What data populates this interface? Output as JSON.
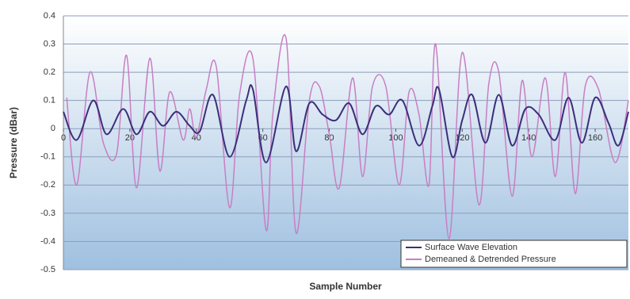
{
  "chart_data": {
    "type": "line",
    "y_label": "Pressure (dBar)",
    "x_label": "Sample Number",
    "xlim": [
      0,
      170
    ],
    "xticks": [
      0,
      20,
      40,
      60,
      80,
      100,
      120,
      140,
      160
    ],
    "ylim": [
      -0.5,
      0.4
    ],
    "yticks": [
      0.4,
      0.3,
      0.2,
      0.1,
      0,
      -0.1,
      -0.2,
      -0.3,
      -0.4,
      -0.5
    ],
    "grid": true,
    "legend": "bottom-right",
    "series": [
      {
        "name": "Surface Wave Elevation",
        "color": "#3b2f7a",
        "x": [
          0,
          4,
          9,
          13,
          18,
          22,
          26,
          30,
          34,
          38,
          41,
          45,
          50,
          55,
          57,
          61,
          67,
          70,
          74,
          78,
          82,
          86,
          90,
          94,
          98,
          102,
          107,
          111,
          113,
          117,
          120,
          123,
          127,
          131,
          135,
          139,
          143,
          148,
          152,
          156,
          160,
          164,
          167,
          170
        ],
        "values": [
          0.06,
          -0.04,
          0.1,
          -0.02,
          0.07,
          -0.02,
          0.06,
          0.01,
          0.06,
          0.01,
          -0.01,
          0.12,
          -0.1,
          0.1,
          0.14,
          -0.12,
          0.15,
          -0.08,
          0.09,
          0.05,
          0.03,
          0.09,
          -0.02,
          0.08,
          0.05,
          0.1,
          -0.06,
          0.08,
          0.14,
          -0.1,
          0.03,
          0.12,
          -0.05,
          0.12,
          -0.06,
          0.07,
          0.05,
          -0.04,
          0.11,
          -0.05,
          0.11,
          0.02,
          -0.06,
          0.06
        ]
      },
      {
        "name": "Demeaned & Detrended Pressure",
        "color": "#c77fc4",
        "x": [
          1,
          4,
          8,
          12,
          16,
          19,
          22,
          26,
          29,
          32,
          36,
          38,
          40,
          43,
          46,
          50,
          53,
          57,
          61,
          63,
          67,
          70,
          74,
          77,
          80,
          83,
          87,
          90,
          93,
          97,
          101,
          104,
          107,
          110,
          112,
          116,
          120,
          125,
          128,
          131,
          135,
          138,
          141,
          145,
          148,
          151,
          154,
          157,
          161,
          166,
          170
        ],
        "values": [
          0.11,
          -0.2,
          0.2,
          -0.05,
          -0.09,
          0.26,
          -0.21,
          0.25,
          -0.15,
          0.13,
          -0.04,
          0.07,
          -0.03,
          0.14,
          0.22,
          -0.28,
          0.12,
          0.25,
          -0.36,
          0.05,
          0.32,
          -0.37,
          0.1,
          0.15,
          -0.02,
          -0.21,
          0.18,
          -0.17,
          0.15,
          0.15,
          -0.2,
          0.13,
          0.05,
          -0.2,
          0.3,
          -0.39,
          0.27,
          -0.27,
          0.16,
          0.2,
          -0.24,
          0.17,
          -0.1,
          0.18,
          -0.17,
          0.2,
          -0.23,
          0.15,
          0.14,
          -0.12,
          0.1
        ]
      }
    ]
  }
}
